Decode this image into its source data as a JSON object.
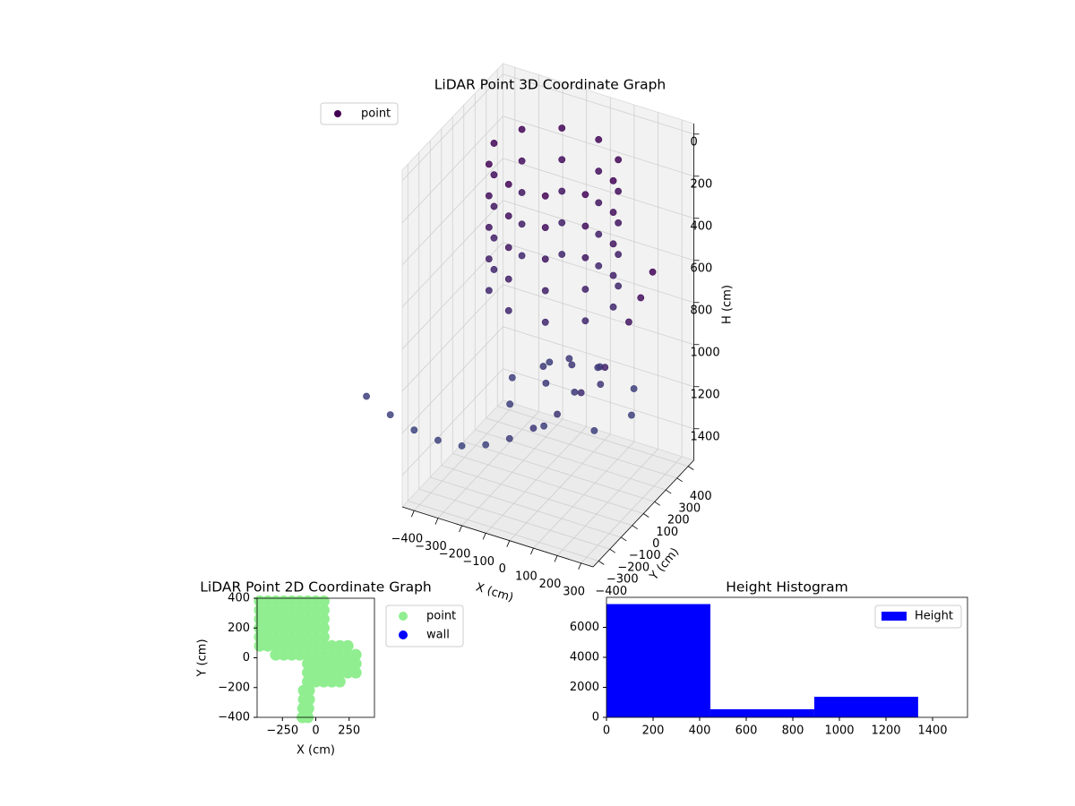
{
  "chart_data": [
    {
      "type": "scatter3d",
      "title": "LiDAR Point 3D Coordinate Graph",
      "xlabel": "X (cm)",
      "ylabel": "Y (cm)",
      "zlabel": "H (cm)",
      "xlim": [
        -450,
        350
      ],
      "ylim": [
        -450,
        450
      ],
      "zlim": [
        1550,
        -50
      ],
      "xticks": [
        {
          "value": -400,
          "label": "−400"
        },
        {
          "value": -300,
          "label": "−300"
        },
        {
          "value": -200,
          "label": "−200"
        },
        {
          "value": -100,
          "label": "−100"
        },
        0,
        100,
        200,
        300
      ],
      "yticks": [
        {
          "value": -400,
          "label": "−400"
        },
        {
          "value": -300,
          "label": "−300"
        },
        {
          "value": -200,
          "label": "−200"
        },
        {
          "value": -100,
          "label": "−100"
        },
        0,
        100,
        200,
        300,
        400
      ],
      "zticks": [
        0,
        200,
        400,
        600,
        800,
        1000,
        1200,
        1400
      ],
      "grid": true,
      "colormap": "viridis",
      "legend": "upper left",
      "series": [
        {
          "name": "point",
          "x": [
            200,
            200,
            200,
            200,
            200,
            152,
            152,
            152,
            152,
            152,
            27,
            27,
            27,
            27,
            27,
            -127,
            -127,
            -127,
            -127,
            -127,
            -252,
            -252,
            -252,
            -252,
            -252,
            -300,
            -300,
            -300,
            -300,
            -300,
            -252,
            -252,
            -252,
            -252,
            -252,
            -127,
            -127,
            -127,
            -127,
            -127,
            27,
            27,
            27,
            27,
            27,
            152,
            152,
            152,
            152,
            152,
            300,
            227,
            50,
            -127,
            -200,
            -127,
            50,
            227,
            170,
            110,
            -10,
            -70,
            -10,
            110,
            50,
            -600,
            -500,
            -400,
            -300,
            -200,
            -100,
            0,
            100,
            200,
            300,
            400,
            500,
            550,
            600
          ],
          "y": [
            50,
            50,
            50,
            50,
            50,
            197,
            197,
            197,
            197,
            197,
            288,
            288,
            288,
            288,
            288,
            288,
            288,
            288,
            288,
            288,
            197,
            197,
            197,
            197,
            197,
            50,
            50,
            50,
            50,
            50,
            -97,
            -97,
            -97,
            -97,
            -97,
            -188,
            -188,
            -188,
            -188,
            -188,
            -188,
            -188,
            -188,
            -188,
            -188,
            -97,
            -97,
            -97,
            -97,
            -97,
            0,
            177,
            250,
            177,
            0,
            -177,
            -250,
            -177,
            0,
            104,
            104,
            0,
            -104,
            -104,
            0,
            -450,
            -450,
            -450,
            -450,
            -450,
            -450,
            -450,
            -450,
            -450,
            -450,
            -450,
            -450,
            -450,
            -450
          ],
          "z": [
            50,
            200,
            350,
            500,
            650,
            50,
            200,
            350,
            500,
            650,
            50,
            200,
            350,
            500,
            650,
            50,
            200,
            350,
            500,
            650,
            50,
            200,
            350,
            500,
            650,
            50,
            200,
            350,
            500,
            650,
            50,
            200,
            350,
            500,
            650,
            50,
            200,
            350,
            500,
            650,
            50,
            200,
            350,
            500,
            650,
            50,
            200,
            350,
            500,
            650,
            1100,
            1100,
            1100,
            1100,
            1100,
            1100,
            1100,
            1100,
            1000,
            1000,
            1000,
            1000,
            1000,
            1000,
            950,
            1078,
            1130,
            1167,
            1180,
            1171,
            1130,
            1065,
            980,
            878,
            740,
            584,
            333,
            200,
            60
          ]
        }
      ]
    },
    {
      "type": "scatter",
      "title": "LiDAR Point 2D Coordinate Graph",
      "xlabel": "X (cm)",
      "ylabel": "Y (cm)",
      "xlim": [
        -440,
        440
      ],
      "ylim": [
        -400,
        400
      ],
      "xticks": [
        {
          "value": -250,
          "label": "−250"
        },
        0,
        250
      ],
      "yticks": [
        {
          "value": -400,
          "label": "−400"
        },
        {
          "value": -200,
          "label": "−200"
        },
        0,
        200,
        400
      ],
      "legend": "outside right",
      "series": [
        {
          "name": "point",
          "color": "#90ee90",
          "x": [
            -420,
            -360,
            -300,
            -240,
            -180,
            -120,
            -60,
            0,
            60,
            -420,
            -360,
            -300,
            -240,
            -180,
            -120,
            -60,
            0,
            60,
            -420,
            -360,
            -300,
            -240,
            -180,
            -120,
            -60,
            0,
            60,
            -420,
            -360,
            -300,
            -240,
            -180,
            -120,
            -60,
            0,
            60,
            -420,
            -360,
            -300,
            -240,
            -180,
            -120,
            -60,
            0,
            60,
            -420,
            -360,
            -300,
            -240,
            -180,
            -120,
            -60,
            0,
            60,
            -300,
            -240,
            -180,
            -120,
            -60,
            0,
            60,
            120,
            180,
            240,
            120,
            180,
            240,
            300,
            -60,
            0,
            60,
            120,
            180,
            240,
            300,
            -60,
            0,
            60,
            120,
            180,
            240,
            300,
            -60,
            0,
            60,
            120,
            180,
            -90,
            -50,
            -90,
            -50,
            -95,
            -55,
            -100,
            -60
          ],
          "y": [
            380,
            380,
            380,
            380,
            380,
            380,
            380,
            380,
            380,
            320,
            320,
            320,
            320,
            320,
            320,
            320,
            320,
            320,
            260,
            260,
            260,
            260,
            260,
            260,
            260,
            260,
            260,
            200,
            200,
            200,
            200,
            200,
            200,
            200,
            200,
            200,
            140,
            140,
            140,
            140,
            140,
            140,
            140,
            140,
            140,
            80,
            80,
            80,
            80,
            80,
            80,
            80,
            80,
            80,
            20,
            20,
            20,
            20,
            20,
            20,
            20,
            80,
            80,
            80,
            20,
            20,
            20,
            20,
            -40,
            -40,
            -40,
            -40,
            -40,
            -40,
            -40,
            -100,
            -100,
            -100,
            -100,
            -100,
            -100,
            -100,
            -160,
            -160,
            -160,
            -160,
            -160,
            -220,
            -220,
            -280,
            -280,
            -340,
            -340,
            -400,
            -400
          ]
        },
        {
          "name": "wall",
          "color": "#0000ff",
          "x": [],
          "y": []
        }
      ]
    },
    {
      "type": "histogram",
      "title": "Height Histogram",
      "xlim": [
        0,
        1550
      ],
      "ylim": [
        0,
        8000
      ],
      "xticks": [
        0,
        200,
        400,
        600,
        800,
        1000,
        1200,
        1400
      ],
      "yticks": [
        0,
        2000,
        4000,
        6000
      ],
      "legend": "upper right",
      "series": [
        {
          "name": "Height",
          "color": "#0000ff",
          "bins": [
            0,
            446,
            892,
            1338
          ],
          "counts": [
            7550,
            540,
            1370
          ]
        }
      ]
    }
  ]
}
